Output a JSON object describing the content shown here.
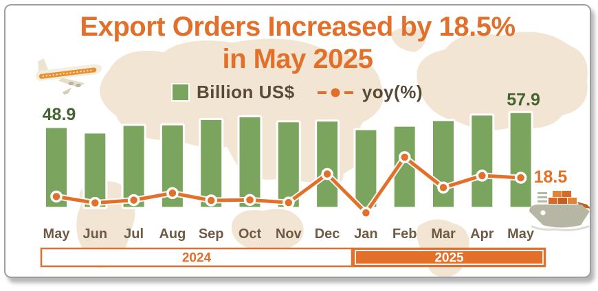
{
  "title": {
    "line1": "Export Orders Increased by 18.5%",
    "line2": "in May 2025"
  },
  "legend": {
    "bar_label": "Billion US$",
    "line_label": "yoy(%)"
  },
  "colors": {
    "accent_orange": "#E2702B",
    "line_orange": "#E2702B",
    "bar_green": "#7BA55F",
    "value_green": "#456331",
    "axis_text": "#6F5B43",
    "legend_text": "#594A37",
    "map_beige": "#F3E5D4",
    "band_2024_fill": "#FFFFFF",
    "band_2024_text": "#E2702B",
    "band_2025_fill": "#E2702B",
    "band_2025_text": "#FFFFFF"
  },
  "icons": {
    "top_left": "cargo-airplane-icon",
    "bottom_right": "container-ship-icon"
  },
  "chart_data": {
    "type": "bar+line combo",
    "title": "Export Orders Increased by 18.5% in May 2025",
    "categories": [
      "May",
      "Jun",
      "Jul",
      "Aug",
      "Sep",
      "Oct",
      "Nov",
      "Dec",
      "Jan",
      "Feb",
      "Mar",
      "Apr",
      "May"
    ],
    "series": [
      {
        "name": "Billion US$",
        "type": "bar",
        "values": [
          48.9,
          45.6,
          50.2,
          50.5,
          53.7,
          55.4,
          52.3,
          52.8,
          47.6,
          49.7,
          53.1,
          56.4,
          57.9
        ]
      },
      {
        "name": "yoy(%)",
        "type": "line",
        "values": [
          7.0,
          3.1,
          4.8,
          9.1,
          4.6,
          4.9,
          3.3,
          20.8,
          -3.0,
          31.1,
          12.5,
          19.8,
          18.5
        ]
      }
    ],
    "bar_value_labels": [
      {
        "index": 0,
        "text": "48.9"
      },
      {
        "index": 12,
        "text": "57.9"
      }
    ],
    "line_value_labels": [
      {
        "index": 12,
        "text": "18.5"
      }
    ],
    "year_bands": [
      {
        "label": "2024",
        "from_index": 0,
        "to_index": 7
      },
      {
        "label": "2025",
        "from_index": 8,
        "to_index": 12
      }
    ],
    "axes_note": "only first/last bar values and last yoy value are labeled; other values estimated from pixel heights",
    "grid": false,
    "legend_position": "top-center"
  }
}
